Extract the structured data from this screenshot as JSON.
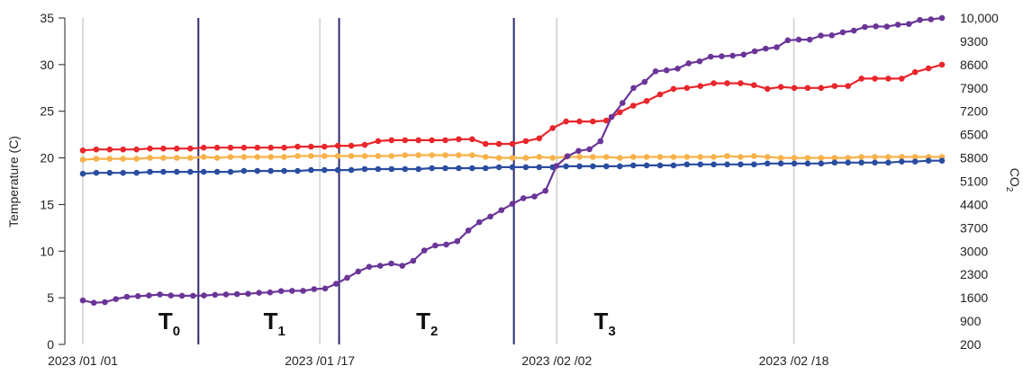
{
  "chart_data": {
    "type": "line",
    "title": "",
    "xlabel": "",
    "ylabel_left": "Temperature (C)",
    "ylabel_right": {
      "base": "CO",
      "sub": "2"
    },
    "x_ticks": [
      "2023 /01 /01",
      "2023 /01 /17",
      "2023 /02 /02",
      "2023 /02 /18"
    ],
    "x_tick_day": [
      0,
      16,
      32,
      48
    ],
    "x_range_days": [
      0,
      58
    ],
    "y_left": {
      "range": [
        0,
        35
      ],
      "ticks": [
        "0",
        "5",
        "10",
        "15",
        "20",
        "25",
        "30",
        "35"
      ]
    },
    "y_right": {
      "range": [
        200,
        10000
      ],
      "ticks": [
        "200",
        "900",
        "1600",
        "2300",
        "3000",
        "3700",
        "4400",
        "5100",
        "5800",
        "6500",
        "7200",
        "7900",
        "8600",
        "9300",
        "10,000"
      ]
    },
    "grid": {
      "vertical_at_day": [
        0,
        16,
        32,
        48
      ],
      "horizontal": false
    },
    "periods": [
      {
        "label": "T",
        "sub": "0"
      },
      {
        "label": "T",
        "sub": "1"
      },
      {
        "label": "T",
        "sub": "2"
      },
      {
        "label": "T",
        "sub": "3"
      }
    ],
    "period_boundaries_day": [
      7.8,
      17.3,
      29.1
    ],
    "period_label_day": [
      5.1,
      12.2,
      22.5,
      34.5
    ],
    "series": [
      {
        "axis": "left",
        "color": "#e8262b",
        "values": [
          20.8,
          20.9,
          20.9,
          20.9,
          20.9,
          21.0,
          21.0,
          21.0,
          21.0,
          21.1,
          21.1,
          21.1,
          21.1,
          21.1,
          21.1,
          21.1,
          21.2,
          21.2,
          21.2,
          21.3,
          21.3,
          21.4,
          21.8,
          21.9,
          21.9,
          21.9,
          21.9,
          21.9,
          22.0,
          22.0,
          21.5,
          21.5,
          21.5,
          21.8,
          22.1,
          23.2,
          23.9,
          23.9,
          23.9,
          24.0,
          24.9,
          25.6,
          26.1,
          26.8,
          27.4,
          27.5,
          27.7,
          28.0,
          28.0,
          28.0,
          27.8,
          27.4,
          27.6,
          27.5,
          27.5,
          27.5,
          27.7,
          27.7,
          28.5,
          28.5,
          28.5,
          28.5,
          29.2,
          29.6,
          30.0
        ]
      },
      {
        "axis": "left",
        "color": "#f7b24b",
        "values": [
          19.8,
          19.9,
          19.9,
          19.9,
          19.9,
          20.0,
          20.0,
          20.0,
          20.0,
          20.1,
          20.0,
          20.1,
          20.1,
          20.1,
          20.1,
          20.1,
          20.2,
          20.2,
          20.2,
          20.2,
          20.2,
          20.2,
          20.2,
          20.2,
          20.3,
          20.3,
          20.3,
          20.3,
          20.3,
          20.3,
          20.1,
          20.0,
          20.0,
          20.0,
          20.1,
          20.0,
          20.1,
          20.1,
          20.1,
          20.1,
          20.0,
          20.1,
          20.1,
          20.1,
          20.1,
          20.1,
          20.1,
          20.1,
          20.2,
          20.1,
          20.2,
          20.1,
          20.0,
          20.0,
          20.0,
          20.0,
          20.0,
          20.0,
          20.1,
          20.1,
          20.1,
          20.1,
          20.1,
          20.1,
          20.1
        ]
      },
      {
        "axis": "left",
        "color": "#2a4da0",
        "values": [
          18.3,
          18.4,
          18.4,
          18.4,
          18.4,
          18.5,
          18.5,
          18.5,
          18.5,
          18.5,
          18.5,
          18.5,
          18.6,
          18.6,
          18.6,
          18.6,
          18.6,
          18.7,
          18.7,
          18.7,
          18.7,
          18.8,
          18.8,
          18.8,
          18.8,
          18.8,
          18.9,
          18.9,
          18.9,
          18.9,
          18.9,
          19.0,
          19.0,
          19.0,
          19.0,
          19.0,
          19.1,
          19.1,
          19.1,
          19.1,
          19.1,
          19.2,
          19.2,
          19.2,
          19.2,
          19.3,
          19.3,
          19.3,
          19.3,
          19.3,
          19.3,
          19.4,
          19.4,
          19.4,
          19.4,
          19.4,
          19.5,
          19.5,
          19.5,
          19.5,
          19.5,
          19.6,
          19.6,
          19.7,
          19.7
        ]
      },
      {
        "axis": "right",
        "color": "#6b3598",
        "values": [
          1520,
          1450,
          1470,
          1560,
          1630,
          1650,
          1670,
          1700,
          1670,
          1660,
          1660,
          1670,
          1690,
          1700,
          1710,
          1720,
          1750,
          1760,
          1800,
          1810,
          1810,
          1860,
          1880,
          2020,
          2200,
          2390,
          2530,
          2560,
          2630,
          2560,
          2710,
          3020,
          3170,
          3200,
          3300,
          3620,
          3870,
          4040,
          4230,
          4420,
          4590,
          4640,
          4810,
          5560,
          5850,
          6010,
          6060,
          6300,
          7030,
          7450,
          7900,
          8080,
          8400,
          8430,
          8480,
          8640,
          8700,
          8840,
          8850,
          8870,
          8900,
          9000,
          9080,
          9120,
          9330,
          9350,
          9350,
          9470,
          9480,
          9570,
          9620,
          9730,
          9750,
          9740,
          9800,
          9820,
          9940,
          9960,
          10000
        ]
      }
    ]
  }
}
